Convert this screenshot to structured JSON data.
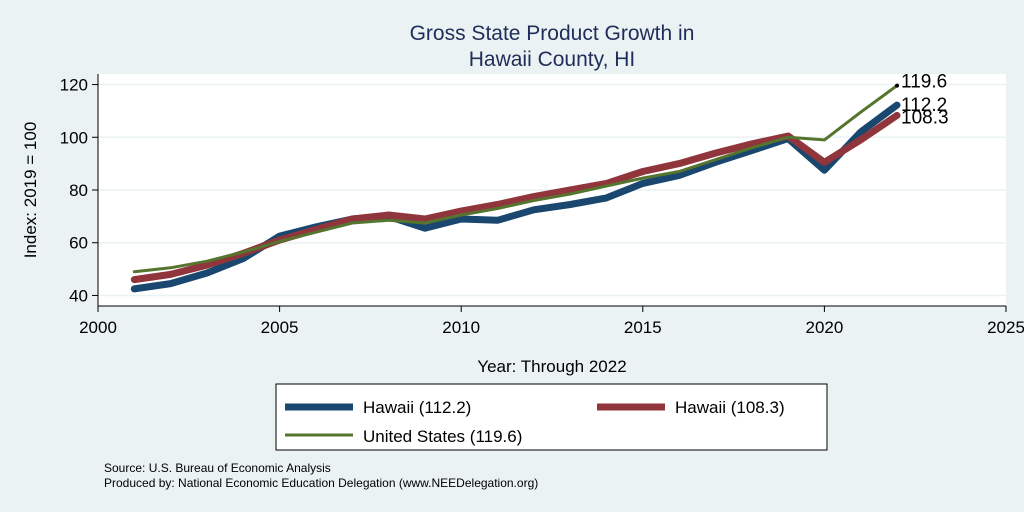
{
  "chart_data": {
    "type": "line",
    "title_lines": [
      "Gross State Product Growth in",
      "Hawaii County, HI"
    ],
    "xlabel": "Year: Through 2022",
    "ylabel": "Index: 2019 = 100",
    "xlim": [
      2000,
      2025
    ],
    "ylim": [
      36,
      124
    ],
    "x_ticks": [
      2000,
      2005,
      2010,
      2015,
      2020,
      2025
    ],
    "y_ticks": [
      40,
      60,
      80,
      100,
      120
    ],
    "grid": true,
    "x": [
      2001,
      2002,
      2003,
      2004,
      2005,
      2006,
      2007,
      2008,
      2009,
      2010,
      2011,
      2012,
      2013,
      2014,
      2015,
      2016,
      2017,
      2018,
      2019,
      2020,
      2021,
      2022
    ],
    "series": [
      {
        "name": "Hawaii  (112.2)",
        "color": "#1a476f",
        "values": [
          42.5,
          44.5,
          48.5,
          54,
          62.5,
          66,
          69,
          70,
          65.5,
          69,
          68.5,
          72.5,
          74.5,
          77,
          82.5,
          85.5,
          90.5,
          95,
          99.5,
          87.5,
          102,
          112.2
        ]
      },
      {
        "name": "Hawaii (108.3)",
        "color": "#90353b",
        "values": [
          46,
          48,
          51.5,
          56,
          61,
          65,
          69,
          70.5,
          69,
          72,
          74.5,
          77.5,
          80,
          82.5,
          87,
          90,
          94,
          97.5,
          100.5,
          90.5,
          99,
          108.3
        ]
      },
      {
        "name": "United States (119.6)",
        "color": "#55752f",
        "values": [
          49,
          50.5,
          53,
          56.5,
          60.5,
          64,
          67.5,
          68.5,
          67.5,
          70.5,
          73,
          76,
          78.5,
          81.5,
          84.5,
          87,
          91.5,
          96,
          100,
          99,
          109.5,
          119.6
        ]
      }
    ],
    "end_labels": [
      "119.6",
      "112.2",
      "108.3"
    ],
    "legend": {
      "placement": "bottom",
      "entries": [
        "Hawaii  (112.2)",
        "Hawaii (108.3)",
        "United States (119.6)"
      ]
    }
  },
  "footnotes": [
    "Source: U.S. Bureau of Economic Analysis",
    "Produced by: National Economic Education Delegation (www.NEEDelegation.org)"
  ]
}
